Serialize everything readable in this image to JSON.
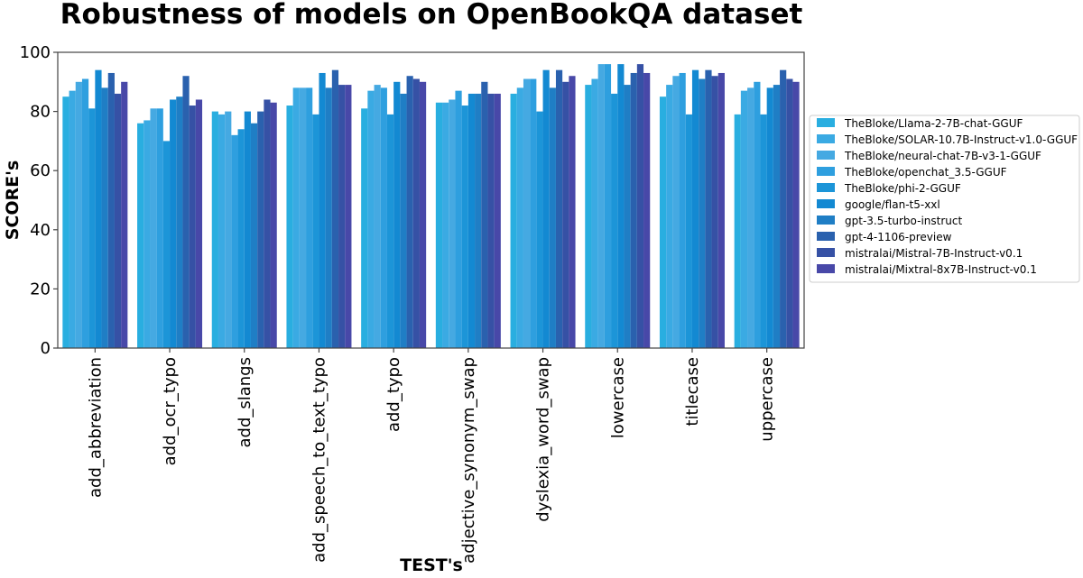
{
  "chart_data": {
    "type": "bar",
    "title": "Robustness of models on OpenBookQA dataset",
    "xlabel": "TEST's",
    "ylabel": "SCORE's",
    "ylim": [
      0,
      100
    ],
    "yticks": [
      0,
      20,
      40,
      60,
      80,
      100
    ],
    "grid": false,
    "legend_position": "right",
    "categories": [
      "add_abbreviation",
      "add_ocr_typo",
      "add_slangs",
      "add_speech_to_text_typo",
      "add_typo",
      "adjective_synonym_swap",
      "dyslexia_word_swap",
      "lowercase",
      "titlecase",
      "uppercase"
    ],
    "series": [
      {
        "name": "TheBloke/Llama-2-7B-chat-GGUF",
        "color": "#29aee0",
        "values": [
          85,
          76,
          80,
          82,
          81,
          83,
          86,
          89,
          85,
          79
        ]
      },
      {
        "name": "TheBloke/SOLAR-10.7B-Instruct-v1.0-GGUF",
        "color": "#3aaae3",
        "values": [
          87,
          77,
          79,
          88,
          87,
          83,
          88,
          91,
          89,
          87
        ]
      },
      {
        "name": "TheBloke/neural-chat-7B-v3-1-GGUF",
        "color": "#45a9e2",
        "values": [
          90,
          81,
          80,
          88,
          89,
          84,
          91,
          96,
          92,
          88
        ]
      },
      {
        "name": "TheBloke/openchat_3.5-GGUF",
        "color": "#2e9fdf",
        "values": [
          91,
          81,
          72,
          88,
          88,
          87,
          91,
          96,
          93,
          90
        ]
      },
      {
        "name": "TheBloke/phi-2-GGUF",
        "color": "#1c95d8",
        "values": [
          81,
          70,
          74,
          79,
          79,
          82,
          80,
          86,
          79,
          79
        ]
      },
      {
        "name": "google/flan-t5-xxl",
        "color": "#1389d2",
        "values": [
          94,
          84,
          80,
          93,
          90,
          86,
          94,
          96,
          94,
          88
        ]
      },
      {
        "name": "gpt-3.5-turbo-instruct",
        "color": "#1f7ec5",
        "values": [
          88,
          85,
          76,
          88,
          86,
          86,
          88,
          89,
          91,
          89
        ]
      },
      {
        "name": "gpt-4-1106-preview",
        "color": "#2a61ae",
        "values": [
          93,
          92,
          80,
          94,
          92,
          90,
          94,
          93,
          94,
          94
        ]
      },
      {
        "name": "mistralai/Mistral-7B-Instruct-v0.1",
        "color": "#3651a5",
        "values": [
          86,
          82,
          84,
          89,
          91,
          86,
          90,
          96,
          92,
          91
        ]
      },
      {
        "name": "mistralai/Mixtral-8x7B-Instruct-v0.1",
        "color": "#4848a8",
        "values": [
          90,
          84,
          83,
          89,
          90,
          86,
          92,
          93,
          93,
          90
        ]
      }
    ]
  }
}
